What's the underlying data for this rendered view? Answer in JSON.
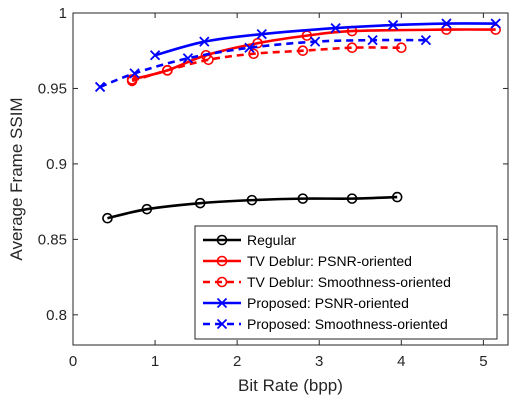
{
  "chart_data": {
    "type": "line",
    "title": "",
    "xlabel": "Bit Rate (bpp)",
    "ylabel": "Average Frame SSIM",
    "xlim": [
      0,
      5.3
    ],
    "ylim": [
      0.78,
      1.0
    ],
    "xticks": [
      0,
      1,
      2,
      3,
      4,
      5
    ],
    "xtick_labels": [
      "0",
      "1",
      "2",
      "3",
      "4",
      "5"
    ],
    "yticks": [
      0.8,
      0.85,
      0.9,
      0.95,
      1.0
    ],
    "ytick_labels": [
      "0.8",
      "0.85",
      "0.9",
      "0.95",
      "1"
    ],
    "grid": false,
    "legend_placement": "bottom-right",
    "series": [
      {
        "name": "Regular",
        "color": "#000000",
        "line_style": "solid",
        "marker": "circle",
        "x": [
          0.42,
          0.9,
          1.55,
          2.18,
          2.8,
          3.4,
          3.95
        ],
        "y": [
          0.864,
          0.87,
          0.874,
          0.876,
          0.877,
          0.877,
          0.878
        ]
      },
      {
        "name": "TV Deblur: PSNR-oriented",
        "color": "#ff0000",
        "line_style": "solid",
        "marker": "circle",
        "x": [
          0.72,
          1.15,
          1.62,
          2.25,
          2.85,
          3.4,
          4.55,
          5.15
        ],
        "y": [
          0.956,
          0.962,
          0.972,
          0.98,
          0.985,
          0.988,
          0.989,
          0.989
        ]
      },
      {
        "name": "TV Deblur: Smoothness-oriented",
        "color": "#ff0000",
        "line_style": "dashed",
        "marker": "circle",
        "x": [
          0.72,
          1.15,
          1.65,
          2.2,
          2.8,
          3.4,
          4.0
        ],
        "y": [
          0.955,
          0.962,
          0.969,
          0.973,
          0.975,
          0.977,
          0.977
        ]
      },
      {
        "name": "Proposed: PSNR-oriented",
        "color": "#0000ff",
        "line_style": "solid",
        "marker": "x",
        "x": [
          1.0,
          1.6,
          2.3,
          3.2,
          3.9,
          4.55,
          5.15
        ],
        "y": [
          0.972,
          0.981,
          0.986,
          0.99,
          0.992,
          0.993,
          0.993
        ]
      },
      {
        "name": "Proposed: Smoothness-oriented",
        "color": "#0000ff",
        "line_style": "dashed",
        "marker": "x",
        "x": [
          0.33,
          0.75,
          1.4,
          2.15,
          2.95,
          3.65,
          4.3
        ],
        "y": [
          0.951,
          0.96,
          0.97,
          0.977,
          0.981,
          0.982,
          0.982
        ]
      }
    ]
  }
}
